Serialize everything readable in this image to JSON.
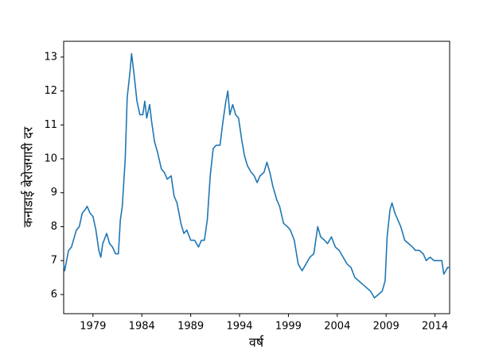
{
  "chart_data": {
    "type": "line",
    "x_label": "वर्ष",
    "y_label": "कनाडाई बेरोजगारी दर",
    "color": "#1f77b4",
    "x": [
      1976.0,
      1976.1,
      1976.3,
      1976.5,
      1976.8,
      1977.0,
      1977.3,
      1977.6,
      1977.9,
      1978.2,
      1978.4,
      1978.7,
      1979.0,
      1979.3,
      1979.6,
      1979.8,
      1980.0,
      1980.4,
      1980.7,
      1981.0,
      1981.3,
      1981.6,
      1981.8,
      1982.0,
      1982.3,
      1982.5,
      1982.8,
      1982.95,
      1983.2,
      1983.5,
      1983.8,
      1984.1,
      1984.3,
      1984.5,
      1984.8,
      1985.0,
      1985.3,
      1985.6,
      1986.0,
      1986.3,
      1986.6,
      1987.0,
      1987.3,
      1987.6,
      1988.0,
      1988.3,
      1988.6,
      1989.0,
      1989.4,
      1989.8,
      1990.1,
      1990.4,
      1990.7,
      1991.0,
      1991.3,
      1991.6,
      1992.0,
      1992.3,
      1992.6,
      1992.8,
      1993.0,
      1993.3,
      1993.6,
      1993.9,
      1994.2,
      1994.5,
      1994.8,
      1995.2,
      1995.5,
      1995.8,
      1996.1,
      1996.5,
      1996.8,
      1997.1,
      1997.4,
      1997.8,
      1998.1,
      1998.5,
      1998.9,
      1999.2,
      1999.6,
      2000.0,
      2000.4,
      2000.8,
      2001.2,
      2001.6,
      2002.0,
      2002.3,
      2002.7,
      2003.0,
      2003.4,
      2003.8,
      2004.2,
      2004.6,
      2005.0,
      2005.4,
      2005.8,
      2006.2,
      2006.6,
      2007.0,
      2007.4,
      2007.8,
      2008.2,
      2008.6,
      2008.9,
      2009.1,
      2009.4,
      2009.6,
      2009.9,
      2010.2,
      2010.5,
      2010.9,
      2011.3,
      2011.7,
      2012.0,
      2012.4,
      2012.8,
      2013.1,
      2013.5,
      2013.9,
      2014.3,
      2014.7,
      2014.9,
      2015.1,
      2015.3,
      2015.5
    ],
    "values": [
      6.9,
      6.7,
      7.0,
      7.3,
      7.4,
      7.6,
      7.9,
      8.0,
      8.4,
      8.5,
      8.6,
      8.4,
      8.3,
      7.9,
      7.3,
      7.1,
      7.5,
      7.8,
      7.5,
      7.4,
      7.2,
      7.2,
      8.2,
      8.6,
      10.0,
      11.8,
      12.6,
      13.1,
      12.5,
      11.7,
      11.3,
      11.3,
      11.7,
      11.2,
      11.6,
      11.1,
      10.5,
      10.2,
      9.7,
      9.6,
      9.4,
      9.5,
      8.9,
      8.7,
      8.1,
      7.8,
      7.9,
      7.6,
      7.6,
      7.4,
      7.6,
      7.6,
      8.2,
      9.5,
      10.3,
      10.4,
      10.4,
      11.1,
      11.7,
      12.0,
      11.3,
      11.6,
      11.3,
      11.2,
      10.6,
      10.1,
      9.8,
      9.6,
      9.5,
      9.3,
      9.5,
      9.6,
      9.9,
      9.6,
      9.2,
      8.8,
      8.6,
      8.1,
      8.0,
      7.9,
      7.6,
      6.9,
      6.7,
      6.9,
      7.1,
      7.2,
      8.0,
      7.7,
      7.6,
      7.5,
      7.7,
      7.4,
      7.3,
      7.1,
      6.9,
      6.8,
      6.5,
      6.4,
      6.3,
      6.2,
      6.1,
      5.9,
      6.0,
      6.1,
      6.4,
      7.7,
      8.5,
      8.7,
      8.4,
      8.2,
      8.0,
      7.6,
      7.5,
      7.4,
      7.3,
      7.3,
      7.2,
      7.0,
      7.1,
      7.0,
      7.0,
      7.0,
      6.6,
      6.7,
      6.8,
      6.8
    ],
    "xlim": [
      1976.0,
      2015.5
    ],
    "xticks": [
      1979,
      1984,
      1989,
      1994,
      1999,
      2004,
      2009,
      2014
    ],
    "ylim": [
      5.435,
      13.465
    ],
    "yticks": [
      6,
      7,
      8,
      9,
      10,
      11,
      12,
      13
    ]
  }
}
